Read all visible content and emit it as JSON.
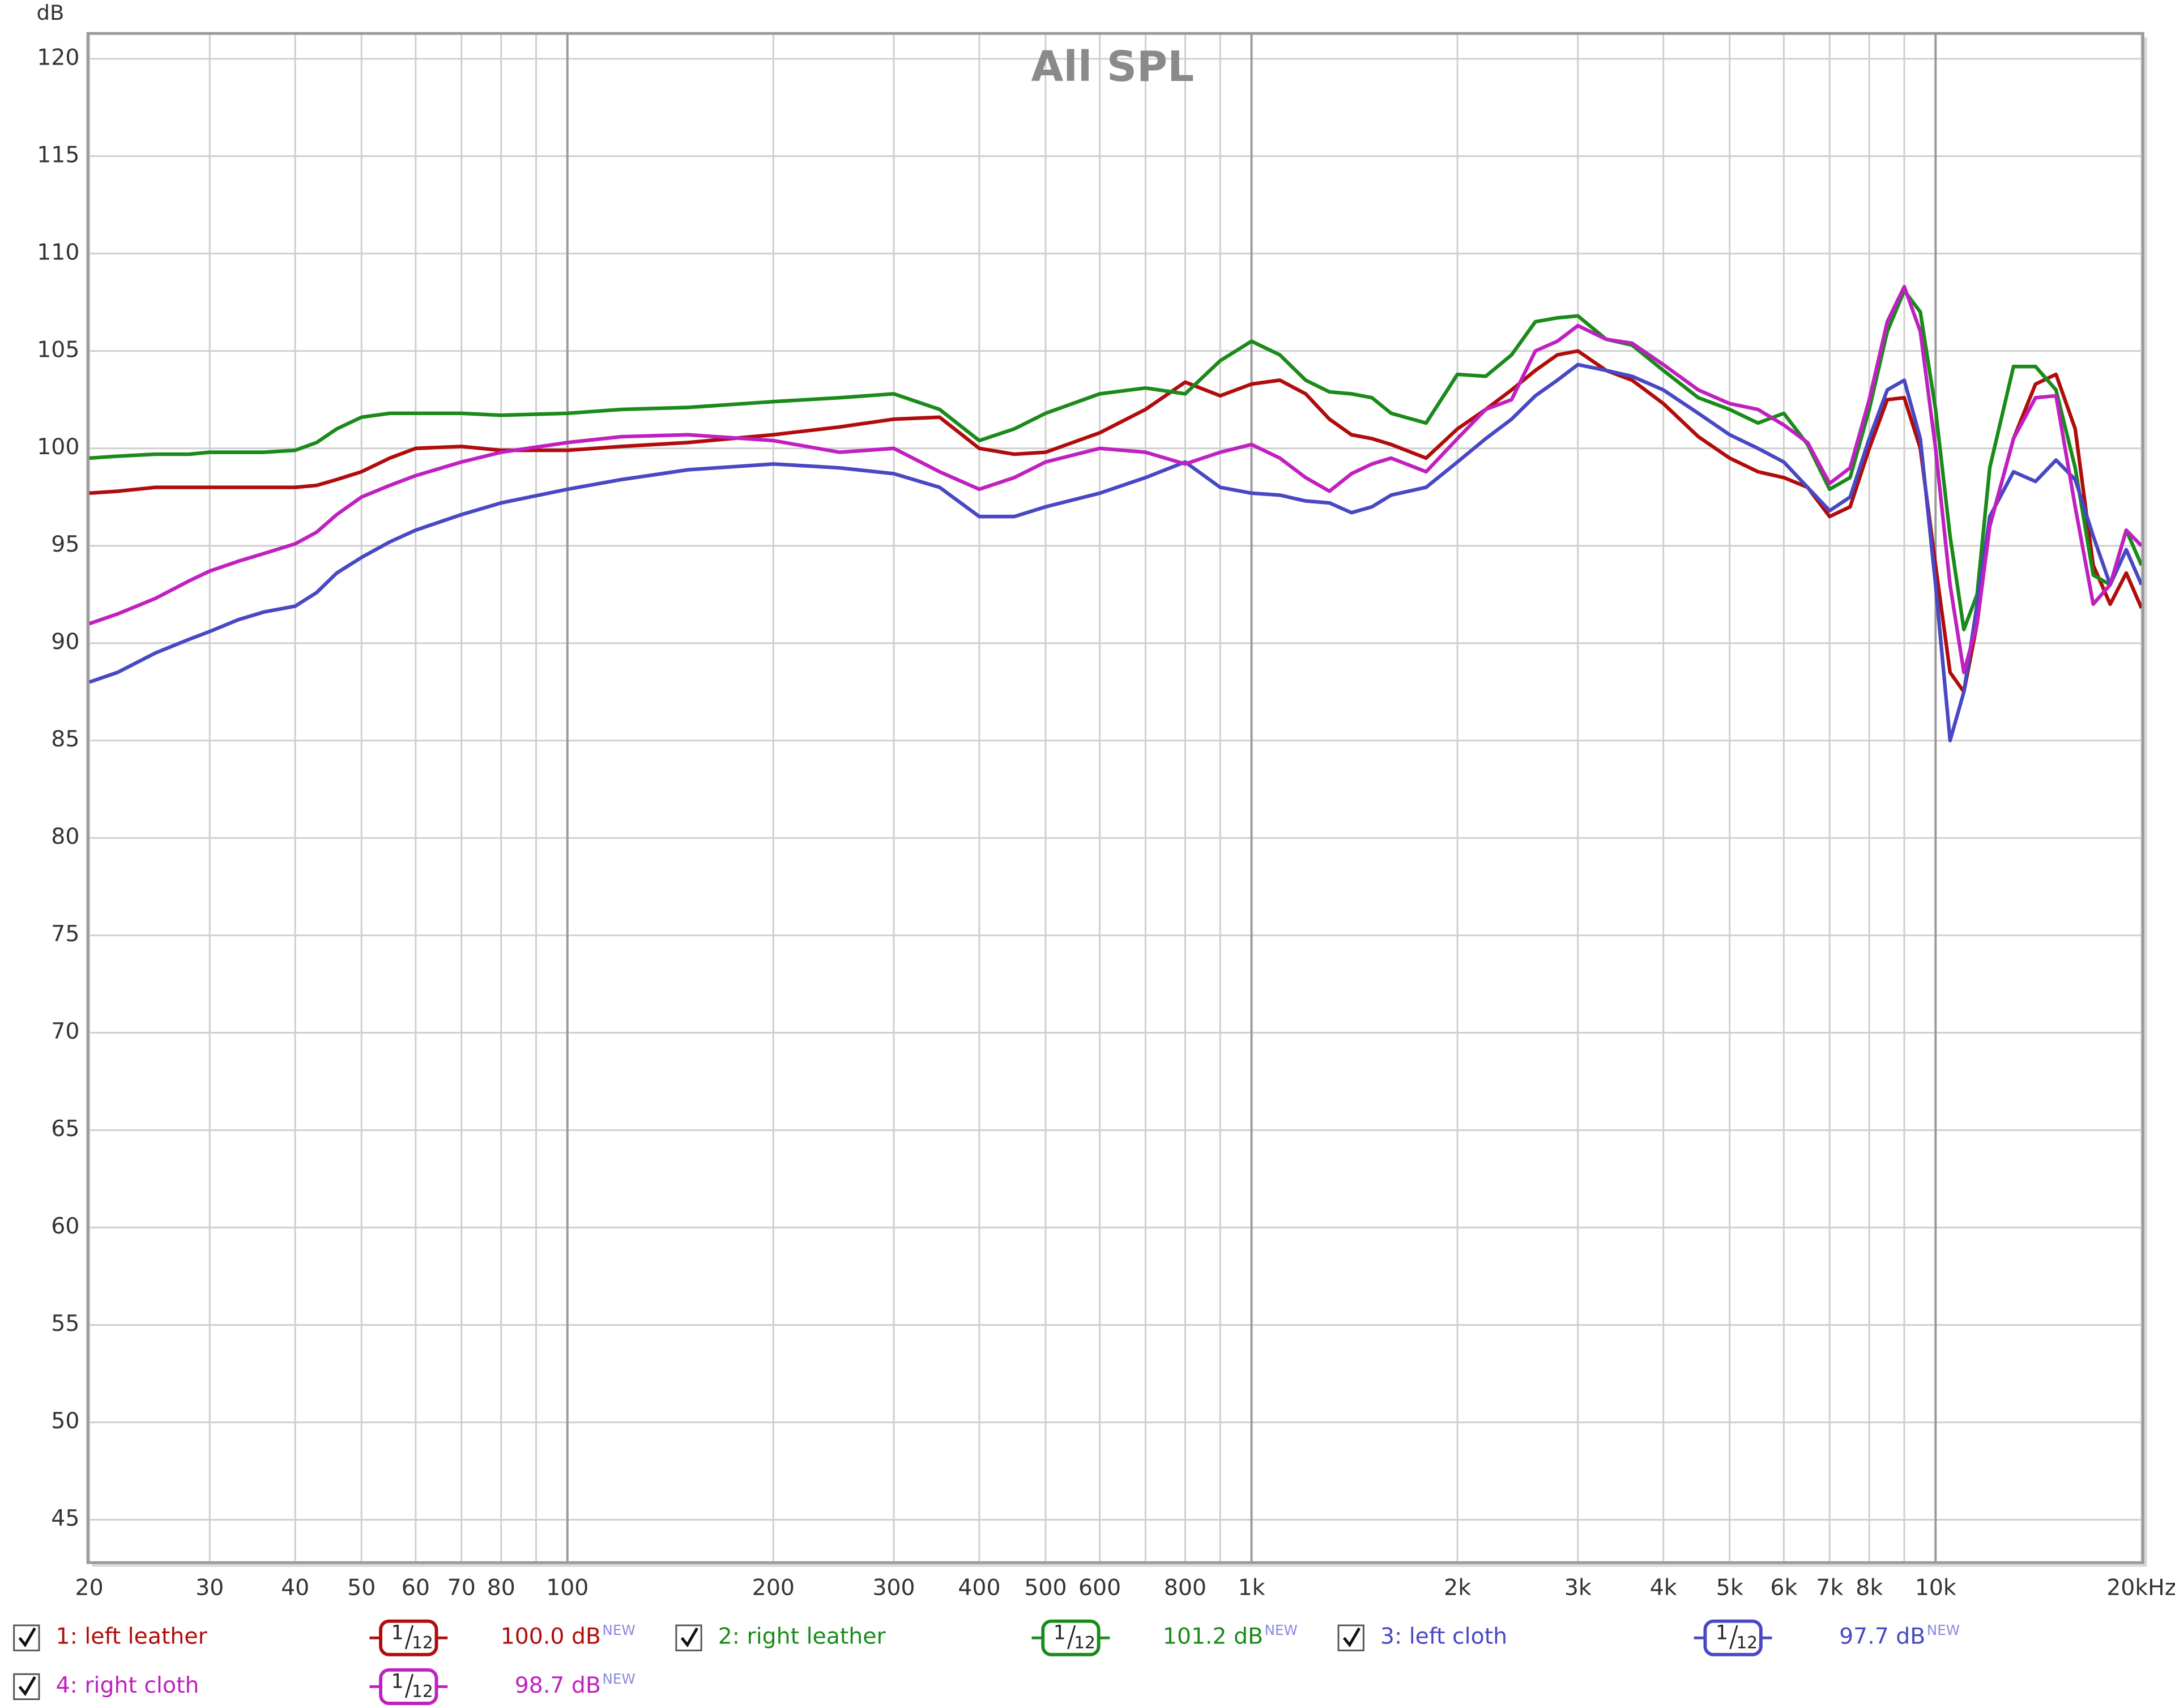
{
  "chart_data": {
    "type": "line",
    "title": "All SPL",
    "y_label": "dB",
    "x_scale": "log",
    "grid": true,
    "x": [
      20,
      22,
      25,
      28,
      30,
      33,
      36,
      40,
      43,
      46,
      50,
      55,
      60,
      70,
      80,
      100,
      120,
      150,
      200,
      250,
      300,
      350,
      400,
      450,
      500,
      600,
      700,
      800,
      900,
      1000,
      1100,
      1200,
      1300,
      1400,
      1500,
      1600,
      1800,
      2000,
      2200,
      2400,
      2600,
      2800,
      3000,
      3300,
      3600,
      4000,
      4500,
      5000,
      5500,
      6000,
      6500,
      7000,
      7500,
      8000,
      8500,
      9000,
      9500,
      10000,
      10500,
      11000,
      11500,
      12000,
      13000,
      14000,
      15000,
      16000,
      17000,
      18000,
      19000,
      20000
    ],
    "xlim": [
      20,
      20000
    ],
    "xticks": [
      20,
      30,
      40,
      50,
      60,
      70,
      80,
      100,
      200,
      300,
      400,
      500,
      600,
      800,
      {
        "value": 1000,
        "label": "1k"
      },
      {
        "value": 2000,
        "label": "2k"
      },
      {
        "value": 3000,
        "label": "3k"
      },
      {
        "value": 4000,
        "label": "4k"
      },
      {
        "value": 5000,
        "label": "5k"
      },
      {
        "value": 6000,
        "label": "6k"
      },
      {
        "value": 7000,
        "label": "7k"
      },
      {
        "value": 8000,
        "label": "8k"
      },
      {
        "value": 10000,
        "label": "10k"
      },
      {
        "value": 20000,
        "label": "20kHz"
      }
    ],
    "x_minor_grid": [
      90,
      700,
      900,
      9000
    ],
    "ylim": [
      42.8,
      121.3
    ],
    "yticks": [
      45,
      50,
      55,
      60,
      65,
      70,
      75,
      80,
      85,
      90,
      95,
      100,
      105,
      110,
      115,
      120
    ],
    "series": [
      {
        "name": "1: left leather",
        "color": "#b00c0c",
        "smoothing": {
          "num": "1",
          "den": "12"
        },
        "level": "100.0 dB",
        "badge": "NEW",
        "values": [
          97.7,
          97.8,
          98,
          98,
          98,
          98,
          98,
          98,
          98.1,
          98.4,
          98.8,
          99.5,
          100,
          100.1,
          99.9,
          99.9,
          100.1,
          100.3,
          100.7,
          101.1,
          101.5,
          101.6,
          100,
          99.7,
          99.8,
          100.8,
          102,
          103.4,
          102.7,
          103.3,
          103.5,
          102.8,
          101.5,
          100.7,
          100.5,
          100.2,
          99.5,
          101,
          102,
          103,
          104,
          104.8,
          105,
          104,
          103.5,
          102.3,
          100.6,
          99.5,
          98.8,
          98.5,
          98,
          96.5,
          97,
          100,
          102.5,
          102.6,
          100,
          94,
          88.5,
          87.5,
          91,
          96,
          100.5,
          103.3,
          103.8,
          101,
          94,
          92,
          93.6,
          91.8
        ]
      },
      {
        "name": "2: right leather",
        "color": "#1a8a1a",
        "smoothing": {
          "num": "1",
          "den": "12"
        },
        "level": "101.2 dB",
        "badge": "NEW",
        "values": [
          99.5,
          99.6,
          99.7,
          99.7,
          99.8,
          99.8,
          99.8,
          99.9,
          100.3,
          101.0,
          101.6,
          101.8,
          101.8,
          101.8,
          101.7,
          101.8,
          102.0,
          102.1,
          102.4,
          102.6,
          102.8,
          102.0,
          100.4,
          101.0,
          101.8,
          102.8,
          103.1,
          102.8,
          104.5,
          105.5,
          104.8,
          103.5,
          102.9,
          102.8,
          102.6,
          101.8,
          101.3,
          103.8,
          103.7,
          104.8,
          106.5,
          106.7,
          106.8,
          105.6,
          105.3,
          104.0,
          102.6,
          102.0,
          101.3,
          101.8,
          100.2,
          97.9,
          98.5,
          102,
          106,
          108.1,
          107,
          102,
          95.5,
          90.7,
          92.5,
          99,
          104.2,
          104.2,
          103,
          99,
          93.5,
          93,
          95.8,
          94
        ]
      },
      {
        "name": "3: left cloth",
        "color": "#4848c4",
        "smoothing": {
          "num": "1",
          "den": "12"
        },
        "level": "97.7 dB",
        "badge": "NEW",
        "values": [
          88,
          88.5,
          89.5,
          90.2,
          90.6,
          91.2,
          91.6,
          91.9,
          92.6,
          93.6,
          94.4,
          95.2,
          95.8,
          96.6,
          97.2,
          97.9,
          98.4,
          98.9,
          99.2,
          99,
          98.7,
          98,
          96.5,
          96.5,
          97,
          97.7,
          98.5,
          99.3,
          98,
          97.7,
          97.6,
          97.3,
          97.2,
          96.7,
          97,
          97.6,
          98,
          99.3,
          100.5,
          101.5,
          102.7,
          103.5,
          104.3,
          104,
          103.7,
          103,
          101.8,
          100.7,
          100,
          99.3,
          98,
          96.8,
          97.5,
          100.5,
          103,
          103.5,
          100.5,
          93,
          85,
          87.5,
          92,
          96.5,
          98.8,
          98.3,
          99.4,
          98.4,
          95.5,
          93,
          94.8,
          93
        ]
      },
      {
        "name": "4: right cloth",
        "color": "#c020c0",
        "smoothing": {
          "num": "1",
          "den": "12"
        },
        "level": "98.7 dB",
        "badge": "NEW",
        "values": [
          91,
          91.5,
          92.3,
          93.2,
          93.7,
          94.2,
          94.6,
          95.1,
          95.7,
          96.6,
          97.5,
          98.1,
          98.6,
          99.3,
          99.8,
          100.3,
          100.6,
          100.7,
          100.4,
          99.8,
          100,
          98.8,
          97.9,
          98.5,
          99.3,
          100,
          99.8,
          99.2,
          99.8,
          100.2,
          99.5,
          98.5,
          97.8,
          98.7,
          99.2,
          99.5,
          98.8,
          100.5,
          102,
          102.5,
          105,
          105.5,
          106.3,
          105.6,
          105.4,
          104.3,
          103,
          102.3,
          102,
          101.2,
          100.3,
          98.2,
          99,
          102.5,
          106.5,
          108.3,
          106,
          100,
          93,
          88.5,
          91,
          96,
          100.5,
          102.6,
          102.7,
          97,
          92,
          93,
          95.8,
          95
        ]
      }
    ]
  }
}
